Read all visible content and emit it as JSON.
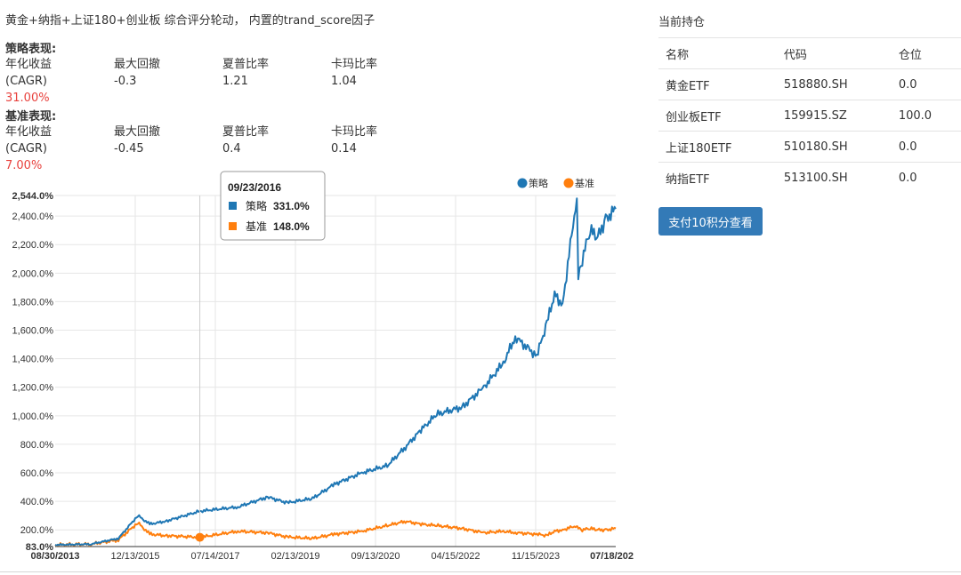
{
  "title": "黄金+纳指+上证180+创业板 综合评分轮动， 内置的trand_score因子",
  "strategy": {
    "label": "策略表现:",
    "cagr_label_1": "年化收益",
    "cagr_label_2": "(CAGR)",
    "cagr_value": "31.00%",
    "mdd_label": "最大回撤",
    "mdd_value": "-0.3",
    "sharpe_label": "夏普比率",
    "sharpe_value": "1.21",
    "calmar_label": "卡玛比率",
    "calmar_value": "1.04"
  },
  "benchmark": {
    "label": "基准表现:",
    "cagr_label_1": "年化收益",
    "cagr_label_2": "(CAGR)",
    "cagr_value": "7.00%",
    "mdd_label": "最大回撤",
    "mdd_value": "-0.45",
    "sharpe_label": "夏普比率",
    "sharpe_value": "0.4",
    "calmar_label": "卡玛比率",
    "calmar_value": "0.14"
  },
  "holdings": {
    "title": "当前持仓",
    "headers": [
      "名称",
      "代码",
      "仓位"
    ],
    "rows": [
      [
        "黄金ETF",
        "518880.SH",
        "0.0"
      ],
      [
        "创业板ETF",
        "159915.SZ",
        "100.0"
      ],
      [
        "上证180ETF",
        "510180.SH",
        "0.0"
      ],
      [
        "纳指ETF",
        "513100.SH",
        "0.0"
      ]
    ],
    "button_label": "支付10积分查看"
  },
  "tooltip": {
    "date": "09/23/2016",
    "s1_name": "策略",
    "s1_value": "331.0%",
    "s2_name": "基准",
    "s2_value": "148.0%"
  },
  "colors": {
    "strategy": "#1f77b4",
    "benchmark": "#ff7f0e",
    "accent_red": "#e8413d",
    "button": "#337ab7"
  },
  "chart_data": {
    "type": "line",
    "y_ticks": [
      "2,544.0%",
      "2,400.0%",
      "2,200.0%",
      "2,000.0%",
      "1,800.0%",
      "1,600.0%",
      "1,400.0%",
      "1,200.0%",
      "1,000.0%",
      "800.0%",
      "600.0%",
      "400.0%",
      "200.0%",
      "83.0%"
    ],
    "ylim": [
      83,
      2544
    ],
    "x_ticks": [
      "08/30/2013",
      "12/13/2015",
      "07/14/2017",
      "02/13/2019",
      "09/13/2020",
      "04/15/2022",
      "11/15/2023",
      "07/18/202"
    ],
    "legend": [
      "策略",
      "基准"
    ],
    "legend_position": "top-right",
    "series": [
      {
        "name": "策略",
        "x": [
          "2013-08-30",
          "2014-06-01",
          "2015-01-01",
          "2015-06-01",
          "2015-09-01",
          "2016-01-01",
          "2016-09-23",
          "2017-07-14",
          "2018-03-01",
          "2018-08-01",
          "2019-02-13",
          "2019-08-01",
          "2020-03-01",
          "2020-09-13",
          "2021-02-01",
          "2021-06-01",
          "2021-10-01",
          "2022-04-15",
          "2022-10-01",
          "2023-03-01",
          "2023-06-01",
          "2023-11-15",
          "2024-02-01",
          "2024-04-01",
          "2024-06-01",
          "2024-09-20",
          "2024-10-01",
          "2024-11-01",
          "2025-01-01",
          "2025-03-01",
          "2025-05-01",
          "2025-07-18"
        ],
        "values": [
          95,
          100,
          140,
          300,
          240,
          260,
          331,
          360,
          430,
          390,
          420,
          520,
          600,
          650,
          780,
          900,
          1010,
          1060,
          1200,
          1370,
          1550,
          1420,
          1650,
          1850,
          1780,
          2544,
          2000,
          2100,
          2300,
          2250,
          2380,
          2450
        ]
      },
      {
        "name": "基准",
        "x": [
          "2013-08-30",
          "2014-06-01",
          "2015-01-01",
          "2015-06-01",
          "2015-09-01",
          "2016-01-01",
          "2016-09-23",
          "2017-07-14",
          "2018-03-01",
          "2018-08-01",
          "2019-02-13",
          "2019-08-01",
          "2020-03-01",
          "2020-09-13",
          "2021-02-01",
          "2021-06-01",
          "2021-10-01",
          "2022-04-15",
          "2022-10-01",
          "2023-03-01",
          "2023-06-01",
          "2023-11-15",
          "2024-02-01",
          "2024-04-01",
          "2024-06-01",
          "2024-09-20",
          "2024-10-01",
          "2024-11-01",
          "2025-01-01",
          "2025-03-01",
          "2025-05-01",
          "2025-07-18"
        ],
        "values": [
          95,
          100,
          130,
          250,
          170,
          160,
          148,
          190,
          180,
          150,
          140,
          170,
          190,
          230,
          260,
          240,
          230,
          210,
          180,
          190,
          180,
          170,
          160,
          190,
          200,
          230,
          220,
          200,
          210,
          200,
          200,
          210
        ]
      }
    ]
  }
}
